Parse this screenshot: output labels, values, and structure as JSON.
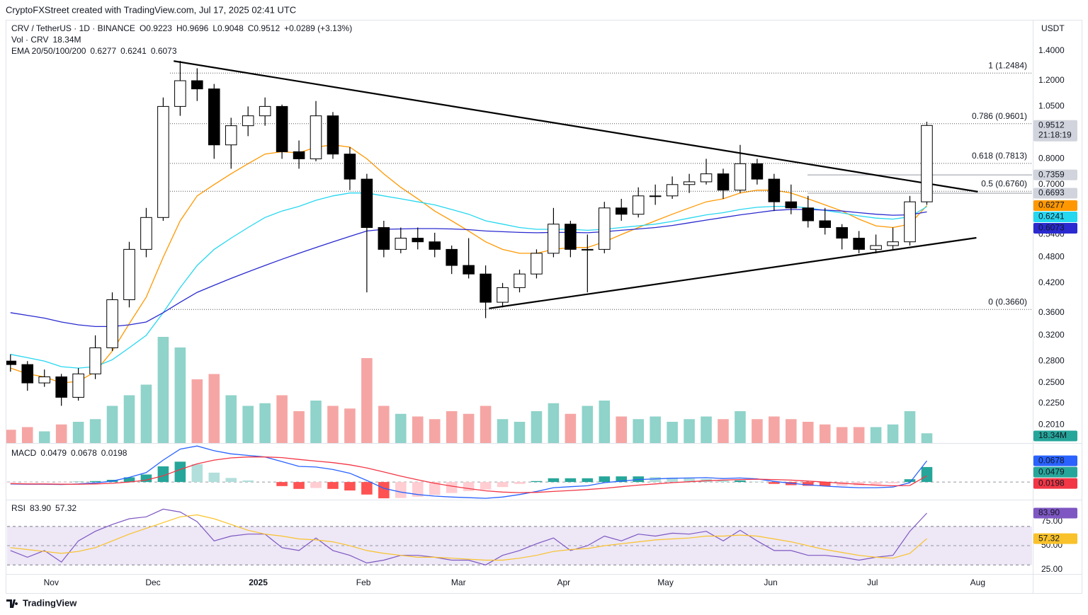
{
  "header": {
    "attribution": "CryptoFXStreet created with TradingView.com, Jul 17, 2025 02:41 UTC",
    "logo": "TradingView"
  },
  "chart_data": [
    {
      "type": "candlestick",
      "title": "CRV / TetherUS · 1D · BINANCE",
      "legend": [
        "O0.9223",
        "H0.9696",
        "L0.9048",
        "C0.9512",
        "+0.0289 (+3.13%)"
      ],
      "axis_label": "USDT",
      "x": [
        1,
        6,
        11,
        16,
        21,
        26,
        31,
        36,
        41,
        46,
        51,
        56,
        61,
        66,
        71,
        76,
        81,
        86,
        91,
        96,
        101,
        106,
        111,
        116,
        121,
        126,
        131,
        136,
        141,
        146,
        151,
        156,
        161,
        166,
        171,
        176,
        181,
        186,
        191,
        196,
        201,
        206,
        211,
        216,
        221,
        226,
        231,
        236,
        241,
        246,
        251,
        256,
        261,
        266,
        271
      ],
      "open": [
        0.28,
        0.275,
        0.25,
        0.258,
        0.232,
        0.262,
        0.3,
        0.385,
        0.5,
        0.59,
        1.05,
        1.2,
        1.15,
        0.86,
        0.95,
        1.0,
        1.05,
        0.83,
        0.8,
        1.0,
        0.82,
        0.72,
        0.56,
        0.5,
        0.53,
        0.52,
        0.5,
        0.46,
        0.44,
        0.38,
        0.41,
        0.44,
        0.49,
        0.57,
        0.5,
        0.5,
        0.62,
        0.6,
        0.66,
        0.66,
        0.7,
        0.71,
        0.74,
        0.68,
        0.78,
        0.72,
        0.64,
        0.62,
        0.58,
        0.56,
        0.53,
        0.5,
        0.51,
        0.52,
        0.64
      ],
      "high": [
        0.29,
        0.28,
        0.268,
        0.262,
        0.27,
        0.32,
        0.4,
        0.52,
        0.62,
        1.1,
        1.33,
        1.28,
        1.18,
        0.99,
        1.05,
        1.1,
        1.06,
        0.88,
        1.08,
        1.02,
        0.85,
        0.74,
        0.58,
        0.56,
        0.56,
        0.545,
        0.51,
        0.53,
        0.46,
        0.42,
        0.45,
        0.5,
        0.62,
        0.58,
        0.54,
        0.64,
        0.65,
        0.69,
        0.7,
        0.73,
        0.74,
        0.8,
        0.76,
        0.86,
        0.8,
        0.74,
        0.7,
        0.66,
        0.62,
        0.57,
        0.55,
        0.54,
        0.56,
        0.66,
        0.9696
      ],
      "low": [
        0.265,
        0.24,
        0.245,
        0.222,
        0.228,
        0.255,
        0.295,
        0.37,
        0.48,
        0.58,
        1.0,
        1.08,
        0.8,
        0.76,
        0.9,
        0.95,
        0.8,
        0.76,
        0.79,
        0.8,
        0.68,
        0.4,
        0.48,
        0.49,
        0.5,
        0.48,
        0.44,
        0.43,
        0.35,
        0.37,
        0.4,
        0.43,
        0.48,
        0.48,
        0.4,
        0.49,
        0.58,
        0.59,
        0.63,
        0.65,
        0.67,
        0.7,
        0.65,
        0.67,
        0.7,
        0.61,
        0.6,
        0.56,
        0.54,
        0.5,
        0.49,
        0.49,
        0.5,
        0.51,
        0.63
      ],
      "close": [
        0.275,
        0.25,
        0.258,
        0.232,
        0.262,
        0.3,
        0.385,
        0.5,
        0.59,
        1.05,
        1.2,
        1.15,
        0.86,
        0.95,
        1.0,
        1.05,
        0.83,
        0.8,
        1.0,
        0.82,
        0.72,
        0.56,
        0.5,
        0.53,
        0.52,
        0.5,
        0.46,
        0.44,
        0.38,
        0.41,
        0.44,
        0.49,
        0.57,
        0.5,
        0.5,
        0.62,
        0.6,
        0.66,
        0.66,
        0.7,
        0.71,
        0.74,
        0.68,
        0.78,
        0.72,
        0.64,
        0.62,
        0.58,
        0.56,
        0.53,
        0.5,
        0.51,
        0.52,
        0.64,
        0.9512
      ],
      "up_color": "#ffffff",
      "down_color": "#000000",
      "last_color": "#d1d4dc",
      "countdown": "21:18:19",
      "log": true,
      "ylim": [
        0.183,
        1.64
      ],
      "xlim": [
        0,
        302
      ],
      "yticks": [
        {
          "value": 1.4,
          "label": "1.4000"
        },
        {
          "value": 1.2,
          "label": "1.2000"
        },
        {
          "value": 1.05,
          "label": "1.0500"
        },
        {
          "value": 0.8,
          "label": "0.8000"
        },
        {
          "value": 0.7,
          "label": "0.7000"
        },
        {
          "value": 0.54,
          "label": "0.5400"
        },
        {
          "value": 0.48,
          "label": "0.4800"
        },
        {
          "value": 0.42,
          "label": "0.4200"
        },
        {
          "value": 0.36,
          "label": "0.3600"
        },
        {
          "value": 0.32,
          "label": "0.3200"
        },
        {
          "value": 0.28,
          "label": "0.2800"
        },
        {
          "value": 0.25,
          "label": "0.2500"
        },
        {
          "value": 0.225,
          "label": "0.2250"
        },
        {
          "value": 0.201,
          "label": "0.2010"
        }
      ],
      "xticks": [
        {
          "value": 13,
          "label": "Nov"
        },
        {
          "value": 43,
          "label": "Dec"
        },
        {
          "value": 74,
          "label": "2025"
        },
        {
          "value": 105,
          "label": "Feb"
        },
        {
          "value": 133,
          "label": "Mar"
        },
        {
          "value": 164,
          "label": "Apr"
        },
        {
          "value": 194,
          "label": "May"
        },
        {
          "value": 225,
          "label": "Jun"
        },
        {
          "value": 255,
          "label": "Jul"
        },
        {
          "value": 286,
          "label": "Aug"
        }
      ],
      "ema": {
        "label": "EMA 20/50/100/200",
        "series": [
          {
            "color": "#ff9800",
            "values": [
              0.27,
              0.262,
              0.258,
              0.25,
              0.252,
              0.265,
              0.295,
              0.34,
              0.39,
              0.48,
              0.58,
              0.66,
              0.7,
              0.74,
              0.78,
              0.82,
              0.83,
              0.825,
              0.85,
              0.86,
              0.85,
              0.8,
              0.74,
              0.69,
              0.65,
              0.61,
              0.58,
              0.55,
              0.52,
              0.5,
              0.49,
              0.49,
              0.5,
              0.505,
              0.505,
              0.52,
              0.54,
              0.56,
              0.58,
              0.6,
              0.62,
              0.64,
              0.65,
              0.67,
              0.68,
              0.68,
              0.67,
              0.65,
              0.63,
              0.61,
              0.585,
              0.565,
              0.56,
              0.57,
              0.6277
            ]
          },
          {
            "color": "#26d7f0",
            "values": [
              0.29,
              0.285,
              0.28,
              0.272,
              0.27,
              0.272,
              0.282,
              0.3,
              0.32,
              0.36,
              0.41,
              0.46,
              0.5,
              0.53,
              0.56,
              0.59,
              0.61,
              0.625,
              0.645,
              0.66,
              0.67,
              0.67,
              0.66,
              0.65,
              0.64,
              0.63,
              0.615,
              0.6,
              0.58,
              0.57,
              0.56,
              0.555,
              0.555,
              0.555,
              0.552,
              0.555,
              0.56,
              0.565,
              0.57,
              0.578,
              0.588,
              0.598,
              0.605,
              0.615,
              0.622,
              0.625,
              0.625,
              0.62,
              0.612,
              0.604,
              0.595,
              0.588,
              0.585,
              0.592,
              0.6241
            ]
          },
          {
            "color": "#2a2ad0",
            "values": [
              0.36,
              0.355,
              0.35,
              0.343,
              0.338,
              0.335,
              0.335,
              0.338,
              0.343,
              0.36,
              0.38,
              0.4,
              0.415,
              0.43,
              0.445,
              0.46,
              0.475,
              0.49,
              0.505,
              0.52,
              0.535,
              0.55,
              0.555,
              0.556,
              0.557,
              0.557,
              0.556,
              0.554,
              0.55,
              0.548,
              0.546,
              0.545,
              0.546,
              0.546,
              0.545,
              0.548,
              0.552,
              0.556,
              0.56,
              0.566,
              0.574,
              0.582,
              0.59,
              0.598,
              0.605,
              0.612,
              0.615,
              0.615,
              0.613,
              0.61,
              0.605,
              0.6,
              0.597,
              0.598,
              0.6073
            ]
          }
        ]
      },
      "fib": [
        {
          "label": "1 (1.2484)",
          "value": 1.2484
        },
        {
          "label": "0.786 (0.9601)",
          "value": 0.9601
        },
        {
          "label": "0.618 (0.7813)",
          "value": 0.7813
        },
        {
          "label": "0.5 (0.6760)",
          "value": 0.676
        },
        {
          "label": "0 (0.3660)",
          "value": 0.366
        }
      ],
      "price_lines": [
        {
          "value": 0.7359,
          "color": "#d1d4dc"
        },
        {
          "value": 0.6693,
          "color": "#d1d4dc"
        }
      ],
      "trendlines": [
        {
          "x": [
            49.1,
            286
          ],
          "y": [
            1.329,
            0.6745
          ]
        },
        {
          "x": [
            142,
            285.6
          ],
          "y": [
            0.368,
            0.531
          ]
        }
      ]
    },
    {
      "type": "bar",
      "label": "Vol · CRV",
      "values": [
        25,
        30,
        22,
        35,
        40,
        45,
        70,
        90,
        110,
        200,
        180,
        120,
        130,
        90,
        70,
        75,
        90,
        60,
        80,
        70,
        65,
        160,
        70,
        55,
        50,
        45,
        60,
        55,
        70,
        45,
        40,
        60,
        75,
        55,
        70,
        80,
        50,
        45,
        50,
        40,
        45,
        50,
        45,
        60,
        45,
        50,
        45,
        40,
        35,
        30,
        30,
        30,
        35,
        60,
        18.34
      ],
      "value_labels": [
        null,
        null,
        null,
        null,
        null,
        null,
        null,
        null,
        null,
        null,
        null,
        null,
        null,
        null,
        null,
        null,
        null,
        null,
        null,
        null,
        null,
        null,
        null,
        null,
        null,
        null,
        null,
        null,
        null,
        null,
        null,
        null,
        null,
        null,
        null,
        null,
        null,
        null,
        null,
        null,
        null,
        null,
        null,
        null,
        null,
        null,
        null,
        null,
        null,
        null,
        null,
        null,
        null,
        null,
        "18.34M"
      ],
      "up_color": "#8fd3ca",
      "down_color": "#f5a6a4",
      "badge_color": "#26a69a",
      "ylim": [
        0,
        440
      ]
    },
    {
      "type": "macd",
      "label": "MACD",
      "ylim": [
        -0.054,
        0.12
      ],
      "hlines": [
        0
      ],
      "hist": {
        "colors": [
          "#26a69a",
          "#b2dfdb",
          "#ffcdd2",
          "#ff5252"
        ],
        "values": [
          -0.001,
          -0.001,
          -0.001,
          -0.001,
          0.001,
          0.003,
          0.007,
          0.015,
          0.024,
          0.05,
          0.065,
          0.057,
          0.03,
          0.013,
          0.005,
          0.0,
          -0.013,
          -0.022,
          -0.019,
          -0.022,
          -0.027,
          -0.04,
          -0.052,
          -0.051,
          -0.047,
          -0.041,
          -0.035,
          -0.029,
          -0.024,
          -0.016,
          -0.006,
          0.003,
          0.012,
          0.012,
          0.012,
          0.018,
          0.018,
          0.018,
          0.016,
          0.014,
          0.012,
          0.01,
          0.005,
          0.005,
          0.001,
          -0.006,
          -0.01,
          -0.012,
          -0.013,
          -0.012,
          -0.011,
          -0.008,
          -0.004,
          0.009,
          0.0479
        ]
      },
      "macd": {
        "color": "#2962ff",
        "values": [
          -0.006,
          -0.007,
          -0.007,
          -0.008,
          -0.006,
          -0.003,
          0.003,
          0.015,
          0.03,
          0.07,
          0.105,
          0.115,
          0.1,
          0.09,
          0.085,
          0.08,
          0.065,
          0.05,
          0.048,
          0.04,
          0.028,
          0.005,
          -0.02,
          -0.032,
          -0.04,
          -0.045,
          -0.048,
          -0.05,
          -0.052,
          -0.048,
          -0.04,
          -0.03,
          -0.018,
          -0.015,
          -0.012,
          -0.002,
          0.003,
          0.008,
          0.01,
          0.012,
          0.013,
          0.014,
          0.011,
          0.013,
          0.01,
          0.002,
          -0.004,
          -0.009,
          -0.013,
          -0.016,
          -0.018,
          -0.018,
          -0.016,
          -0.002,
          0.0678
        ]
      },
      "signal": {
        "color": "#f23645",
        "values": [
          -0.005,
          -0.006,
          -0.006,
          -0.007,
          -0.007,
          -0.006,
          -0.004,
          0.0,
          0.006,
          0.02,
          0.04,
          0.058,
          0.07,
          0.077,
          0.08,
          0.08,
          0.078,
          0.072,
          0.067,
          0.062,
          0.055,
          0.045,
          0.032,
          0.019,
          0.007,
          -0.004,
          -0.013,
          -0.021,
          -0.028,
          -0.032,
          -0.034,
          -0.033,
          -0.03,
          -0.027,
          -0.024,
          -0.02,
          -0.015,
          -0.01,
          -0.006,
          -0.002,
          0.001,
          0.004,
          0.006,
          0.008,
          0.009,
          0.008,
          0.006,
          0.003,
          0.0,
          -0.004,
          -0.007,
          -0.01,
          -0.012,
          -0.011,
          0.0198
        ]
      }
    },
    {
      "type": "line",
      "label": "RSI",
      "ylim": [
        19.9,
        97.1
      ],
      "yticks": [
        {
          "value": 75,
          "label": "75.00"
        },
        {
          "value": 50,
          "label": "50.00"
        },
        {
          "value": 25,
          "label": "25.00"
        }
      ],
      "band": [
        30,
        70
      ],
      "midline": 50,
      "band_color": "#ede7f6",
      "series": [
        {
          "color": "#7e57c2",
          "values": [
            45,
            38,
            45,
            33,
            55,
            65,
            72,
            78,
            80,
            88,
            85,
            75,
            55,
            60,
            62,
            62,
            48,
            45,
            58,
            45,
            40,
            32,
            35,
            40,
            40,
            38,
            35,
            35,
            30,
            40,
            45,
            52,
            58,
            45,
            50,
            60,
            55,
            62,
            60,
            63,
            62,
            65,
            55,
            66,
            55,
            45,
            45,
            40,
            40,
            38,
            35,
            38,
            40,
            65,
            83.9
          ],
          "value_labels": [
            null,
            null,
            null,
            null,
            null,
            null,
            null,
            null,
            null,
            null,
            null,
            null,
            null,
            null,
            null,
            null,
            null,
            null,
            null,
            null,
            null,
            null,
            null,
            null,
            null,
            null,
            null,
            null,
            null,
            null,
            null,
            null,
            null,
            null,
            null,
            null,
            null,
            null,
            null,
            null,
            null,
            null,
            null,
            null,
            null,
            null,
            null,
            null,
            null,
            null,
            null,
            null,
            null,
            null,
            "83.90"
          ]
        },
        {
          "color": "#f9c22b",
          "values": [
            48,
            46,
            44,
            42,
            44,
            48,
            55,
            62,
            68,
            74,
            80,
            82,
            78,
            72,
            66,
            62,
            60,
            57,
            56,
            54,
            50,
            45,
            42,
            40,
            38,
            38,
            37,
            36,
            35,
            35,
            37,
            40,
            44,
            46,
            47,
            50,
            52,
            54,
            56,
            57,
            58,
            60,
            60,
            61,
            60,
            57,
            54,
            50,
            46,
            43,
            40,
            38,
            37,
            42,
            57.32
          ]
        }
      ]
    }
  ]
}
